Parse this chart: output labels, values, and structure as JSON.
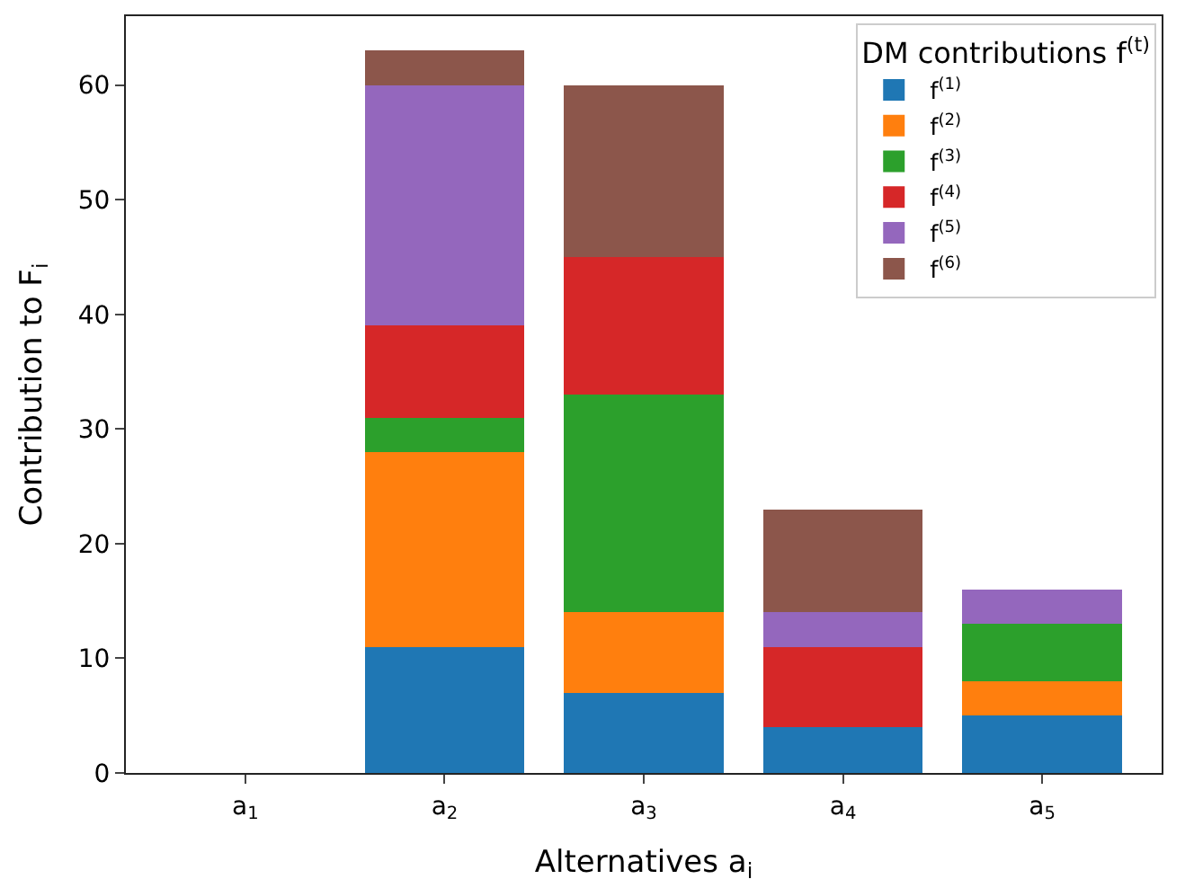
{
  "chart_data": {
    "type": "bar",
    "stacked": true,
    "xlabel": "Alternatives a$_{i}$",
    "ylabel": "Contribution to F$_{i}$",
    "legend_title": "DM contributions f$^{(t)}$",
    "legend": "top right",
    "grid": false,
    "categories": [
      "a$_{1}$",
      "a$_{2}$",
      "a$_{3}$",
      "a$_{4}$",
      "a$_{5}$"
    ],
    "ylim": [
      0,
      66
    ],
    "yticks": [
      0,
      10,
      20,
      30,
      40,
      50,
      60
    ],
    "series": [
      {
        "name": "f$^{(1)}$",
        "color": "#1f77b4",
        "values": [
          0,
          11,
          7,
          4,
          5
        ]
      },
      {
        "name": "f$^{(2)}$",
        "color": "#ff7f0e",
        "values": [
          0,
          17,
          7,
          0,
          3
        ]
      },
      {
        "name": "f$^{(3)}$",
        "color": "#2ca02c",
        "values": [
          0,
          3,
          19,
          0,
          5
        ]
      },
      {
        "name": "f$^{(4)}$",
        "color": "#d62728",
        "values": [
          0,
          8,
          12,
          7,
          0
        ]
      },
      {
        "name": "f$^{(5)}$",
        "color": "#9467bd",
        "values": [
          0,
          21,
          0,
          3,
          3
        ]
      },
      {
        "name": "f$^{(6)}$",
        "color": "#8c564b",
        "values": [
          0,
          3,
          15,
          9,
          0
        ]
      }
    ]
  }
}
